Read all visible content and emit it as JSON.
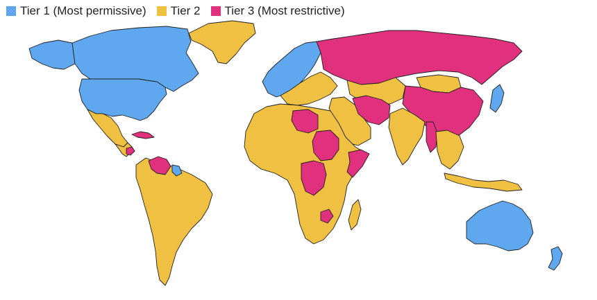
{
  "legend": {
    "items": [
      {
        "id": "tier1",
        "label": "Tier 1 (Most permissive)",
        "color": "#5fa8f0"
      },
      {
        "id": "tier2",
        "label": "Tier 2",
        "color": "#f0c043"
      },
      {
        "id": "tier3",
        "label": "Tier 3 (Most restrictive)",
        "color": "#e0307e"
      }
    ]
  },
  "regions": [
    {
      "name": "canada",
      "tier": "tier1"
    },
    {
      "name": "alaska",
      "tier": "tier1"
    },
    {
      "name": "united-states",
      "tier": "tier1"
    },
    {
      "name": "greenland",
      "tier": "tier2"
    },
    {
      "name": "mexico",
      "tier": "tier2"
    },
    {
      "name": "central-america",
      "tier": "tier2"
    },
    {
      "name": "nicaragua",
      "tier": "tier3"
    },
    {
      "name": "cuba",
      "tier": "tier3"
    },
    {
      "name": "venezuela",
      "tier": "tier3"
    },
    {
      "name": "guyana",
      "tier": "tier1"
    },
    {
      "name": "south-america",
      "tier": "tier2"
    },
    {
      "name": "europe-north",
      "tier": "tier1"
    },
    {
      "name": "europe-south",
      "tier": "tier2"
    },
    {
      "name": "russia",
      "tier": "tier3"
    },
    {
      "name": "kazakhstan",
      "tier": "tier2"
    },
    {
      "name": "mongolia",
      "tier": "tier2"
    },
    {
      "name": "china",
      "tier": "tier3"
    },
    {
      "name": "middle-east",
      "tier": "tier2"
    },
    {
      "name": "iran",
      "tier": "tier3"
    },
    {
      "name": "india",
      "tier": "tier2"
    },
    {
      "name": "southeast-asia",
      "tier": "tier2"
    },
    {
      "name": "myanmar",
      "tier": "tier3"
    },
    {
      "name": "japan",
      "tier": "tier1"
    },
    {
      "name": "indonesia",
      "tier": "tier2"
    },
    {
      "name": "africa",
      "tier": "tier2"
    },
    {
      "name": "libya",
      "tier": "tier3"
    },
    {
      "name": "sudan",
      "tier": "tier3"
    },
    {
      "name": "somalia",
      "tier": "tier3"
    },
    {
      "name": "dr-congo",
      "tier": "tier3"
    },
    {
      "name": "zimbabwe",
      "tier": "tier3"
    },
    {
      "name": "madagascar",
      "tier": "tier2"
    },
    {
      "name": "australia",
      "tier": "tier1"
    },
    {
      "name": "new-zealand",
      "tier": "tier1"
    }
  ]
}
